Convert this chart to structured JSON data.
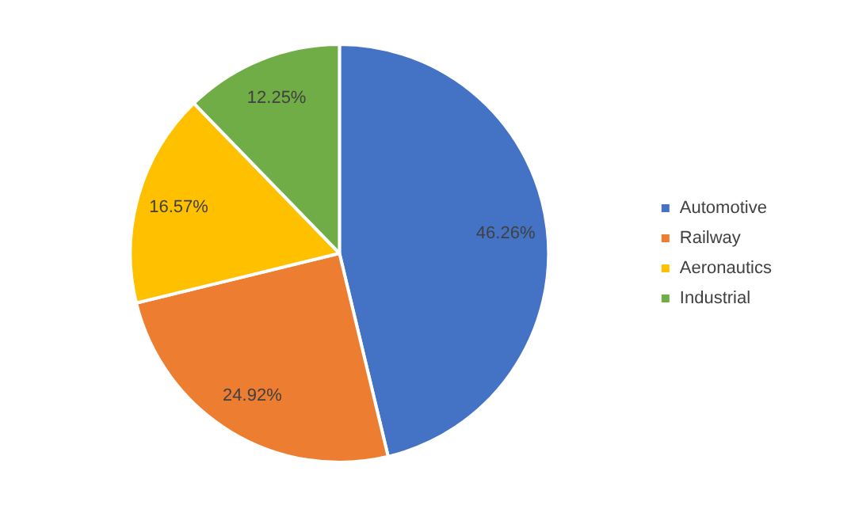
{
  "chart_data": {
    "type": "pie",
    "categories": [
      "Automotive",
      "Railway",
      "Aeronautics",
      "Industrial"
    ],
    "values": [
      46.26,
      24.92,
      16.57,
      12.25
    ],
    "colors": [
      "#4472c4",
      "#ed7d31",
      "#ffc000",
      "#70ad47"
    ],
    "value_labels": [
      "46.26%",
      "24.92%",
      "16.57%",
      "12.25%"
    ],
    "legend": "right"
  }
}
